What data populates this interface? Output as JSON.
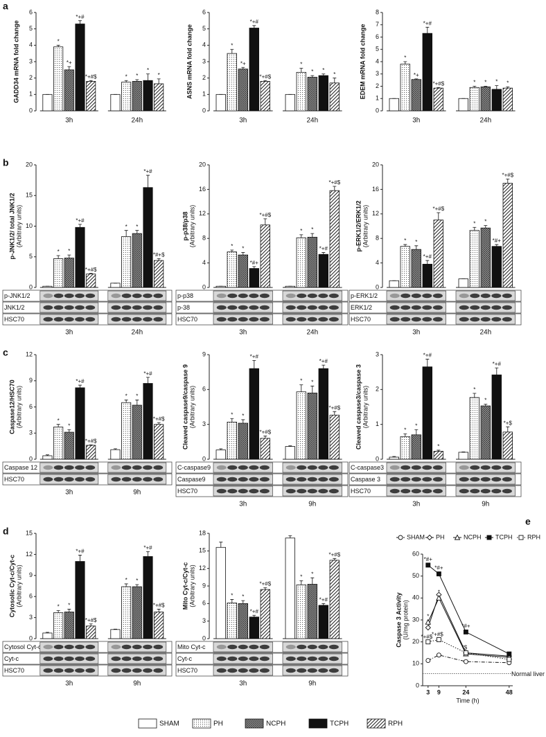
{
  "panels": [
    "a",
    "b",
    "c",
    "d",
    "e"
  ],
  "legend": [
    {
      "name": "SHAM",
      "pattern": "white"
    },
    {
      "name": "PH",
      "pattern": "dots"
    },
    {
      "name": "NCPH",
      "pattern": "crosshatch"
    },
    {
      "name": "TCPH",
      "pattern": "black"
    },
    {
      "name": "RPH",
      "pattern": "hatch"
    }
  ],
  "chart_data": [
    {
      "type": "bar",
      "ylabel": "GADD34 mRNA fold change",
      "categories": [
        "3h",
        "24h"
      ],
      "ylim": [
        0,
        6
      ],
      "yticks": [
        0,
        1,
        2,
        3,
        4,
        5,
        6
      ],
      "blots": [],
      "series": [
        {
          "values": [
            1,
            1
          ],
          "errors": [
            0,
            0
          ],
          "annotations": [
            null,
            null
          ]
        },
        {
          "values": [
            3.9,
            1.75
          ],
          "errors": [
            0.1,
            0.1
          ],
          "annotations": [
            "*",
            "*"
          ]
        },
        {
          "values": [
            2.5,
            1.8
          ],
          "errors": [
            0.2,
            0.1
          ],
          "annotations": [
            "*+",
            "*"
          ]
        },
        {
          "values": [
            5.3,
            1.85
          ],
          "errors": [
            0.2,
            0.4
          ],
          "annotations": [
            "*+#",
            "*"
          ]
        },
        {
          "values": [
            1.8,
            1.65
          ],
          "errors": [
            0.05,
            0.3
          ],
          "annotations": [
            "*+#$",
            "*"
          ]
        }
      ]
    },
    {
      "type": "bar",
      "ylabel": "ASNS mRNA fold change",
      "categories": [
        "3h",
        "24h"
      ],
      "ylim": [
        0,
        6
      ],
      "yticks": [
        0,
        1,
        2,
        3,
        4,
        5,
        6
      ],
      "blots": [],
      "series": [
        {
          "values": [
            1,
            1
          ],
          "errors": [
            0,
            0
          ],
          "annotations": [
            null,
            null
          ]
        },
        {
          "values": [
            3.5,
            2.35
          ],
          "errors": [
            0.25,
            0.25
          ],
          "annotations": [
            "*",
            "*"
          ]
        },
        {
          "values": [
            2.55,
            2.05
          ],
          "errors": [
            0.1,
            0.1
          ],
          "annotations": [
            "*+",
            "*"
          ]
        },
        {
          "values": [
            5.05,
            2.15
          ],
          "errors": [
            0.15,
            0.1
          ],
          "annotations": [
            "*+#",
            "*"
          ]
        },
        {
          "values": [
            1.8,
            1.7
          ],
          "errors": [
            0.05,
            0.3
          ],
          "annotations": [
            "*+#$",
            "*"
          ]
        }
      ]
    },
    {
      "type": "bar",
      "ylabel": "EDEM mRNA fold change",
      "categories": [
        "3h",
        "24h"
      ],
      "ylim": [
        0,
        8
      ],
      "yticks": [
        0,
        1,
        2,
        3,
        4,
        5,
        6,
        7,
        8
      ],
      "blots": [],
      "series": [
        {
          "values": [
            1,
            1
          ],
          "errors": [
            0,
            0
          ],
          "annotations": [
            null,
            null
          ]
        },
        {
          "values": [
            3.8,
            1.9
          ],
          "errors": [
            0.2,
            0.1
          ],
          "annotations": [
            "*",
            "*"
          ]
        },
        {
          "values": [
            2.55,
            1.95
          ],
          "errors": [
            0.05,
            0.05
          ],
          "annotations": [
            "*+",
            "*"
          ]
        },
        {
          "values": [
            6.3,
            1.75
          ],
          "errors": [
            0.5,
            0.3
          ],
          "annotations": [
            "*+#",
            "*"
          ]
        },
        {
          "values": [
            1.85,
            1.85
          ],
          "errors": [
            0.05,
            0.1
          ],
          "annotations": [
            "*+#$",
            "*"
          ]
        }
      ]
    },
    {
      "type": "bar",
      "ylabel": "p-JNK1/2/ total JNK1/2",
      "yunits": "(Arbitrary units)",
      "categories": [
        "3h",
        "24h"
      ],
      "ylim": [
        0,
        20
      ],
      "yticks": [
        0,
        5,
        10,
        15,
        20
      ],
      "blots": [
        "p-JNK1/2",
        "JNK1/2",
        "HSC70"
      ],
      "series": [
        {
          "values": [
            0.2,
            0.7
          ],
          "errors": [
            0,
            0
          ],
          "annotations": [
            null,
            null
          ]
        },
        {
          "values": [
            4.7,
            8.3
          ],
          "errors": [
            0.5,
            1
          ],
          "annotations": [
            "*",
            "*"
          ]
        },
        {
          "values": [
            4.8,
            8.8
          ],
          "errors": [
            0.5,
            0.5
          ],
          "annotations": [
            "*",
            "*"
          ]
        },
        {
          "values": [
            9.8,
            16.3
          ],
          "errors": [
            0.5,
            2
          ],
          "annotations": [
            "*+#",
            "*+#"
          ]
        },
        {
          "values": [
            2.2,
            4.4
          ],
          "errors": [
            0.1,
            0.3
          ],
          "annotations": [
            "*+#$",
            "*#+$"
          ]
        }
      ]
    },
    {
      "type": "bar",
      "ylabel": "p-p38/p38",
      "yunits": "(Arbitrary units)",
      "categories": [
        "3h",
        "24h"
      ],
      "ylim": [
        0,
        20
      ],
      "yticks": [
        0,
        4,
        8,
        12,
        16,
        20
      ],
      "blots": [
        "p-p38",
        "p-38",
        "HSC70"
      ],
      "series": [
        {
          "values": [
            0.2,
            0.2
          ],
          "errors": [
            0,
            0
          ],
          "annotations": [
            null,
            null
          ]
        },
        {
          "values": [
            5.8,
            8.1
          ],
          "errors": [
            0.3,
            0.5
          ],
          "annotations": [
            "*",
            "*"
          ]
        },
        {
          "values": [
            5.3,
            8.2
          ],
          "errors": [
            0.4,
            0.6
          ],
          "annotations": [
            "*",
            "*"
          ]
        },
        {
          "values": [
            3.1,
            5.4
          ],
          "errors": [
            0.3,
            0.3
          ],
          "annotations": [
            "*#+",
            "*+#"
          ]
        },
        {
          "values": [
            10.2,
            15.8
          ],
          "errors": [
            1,
            0.7
          ],
          "annotations": [
            "*+#$",
            "*+#$"
          ]
        }
      ]
    },
    {
      "type": "bar",
      "ylabel": "p-ERK1/2/ERK1/2",
      "yunits": "(Arbitrary units)",
      "categories": [
        "3h",
        "24h"
      ],
      "ylim": [
        0,
        20
      ],
      "yticks": [
        0,
        4,
        8,
        12,
        16,
        20
      ],
      "blots": [
        "p-ERK1/2",
        "ERK1/2",
        "HSC70"
      ],
      "series": [
        {
          "values": [
            1.1,
            1.4
          ],
          "errors": [
            0,
            0
          ],
          "annotations": [
            null,
            null
          ]
        },
        {
          "values": [
            6.7,
            9.3
          ],
          "errors": [
            0.3,
            0.5
          ],
          "annotations": [
            "*",
            "*"
          ]
        },
        {
          "values": [
            6.2,
            9.7
          ],
          "errors": [
            0.6,
            0.4
          ],
          "annotations": [
            "*",
            "*"
          ]
        },
        {
          "values": [
            3.8,
            6.7
          ],
          "errors": [
            0.6,
            0.3
          ],
          "annotations": [
            "*+#",
            "*#+"
          ]
        },
        {
          "values": [
            11,
            17
          ],
          "errors": [
            1.2,
            0.7
          ],
          "annotations": [
            "*+#$",
            "*+#$"
          ]
        }
      ]
    },
    {
      "type": "bar",
      "ylabel": "Caspase12/HSC70",
      "yunits": "(Arbitrary units)",
      "categories": [
        "3h",
        "9h"
      ],
      "ylim": [
        0,
        12
      ],
      "yticks": [
        0,
        3,
        6,
        9,
        12
      ],
      "blots": [
        "Caspase 12",
        "HSC70"
      ],
      "series": [
        {
          "values": [
            0.4,
            1.1
          ],
          "errors": [
            0.1,
            0.1
          ],
          "annotations": [
            null,
            null
          ]
        },
        {
          "values": [
            3.7,
            6.5
          ],
          "errors": [
            0.3,
            0.3
          ],
          "annotations": [
            "*",
            "*"
          ]
        },
        {
          "values": [
            3.1,
            6.2
          ],
          "errors": [
            0.3,
            0.6
          ],
          "annotations": [
            "*",
            "*"
          ]
        },
        {
          "values": [
            8.2,
            8.7
          ],
          "errors": [
            0.3,
            0.7
          ],
          "annotations": [
            "*+#",
            "*+#"
          ]
        },
        {
          "values": [
            1.6,
            4
          ],
          "errors": [
            0.05,
            0.2
          ],
          "annotations": [
            "*+#$",
            "*+#$"
          ]
        }
      ]
    },
    {
      "type": "bar",
      "ylabel": "Cleaved caspase9/caspase 9",
      "yunits": "(Arbitrary units)",
      "categories": [
        "3h",
        "9h"
      ],
      "ylim": [
        0,
        9
      ],
      "yticks": [
        0,
        3,
        6,
        9
      ],
      "blots": [
        "C-caspase9",
        "Caspase9",
        "HSC70"
      ],
      "series": [
        {
          "values": [
            0.8,
            1.1
          ],
          "errors": [
            0.1,
            0.05
          ],
          "annotations": [
            null,
            null
          ]
        },
        {
          "values": [
            3.2,
            5.8
          ],
          "errors": [
            0.3,
            0.6
          ],
          "annotations": [
            "*",
            "*"
          ]
        },
        {
          "values": [
            3.1,
            5.7
          ],
          "errors": [
            0.3,
            0.6
          ],
          "annotations": [
            "*",
            "*"
          ]
        },
        {
          "values": [
            7.8,
            7.8
          ],
          "errors": [
            0.7,
            0.3
          ],
          "annotations": [
            "*+#",
            "*+#"
          ]
        },
        {
          "values": [
            1.8,
            3.8
          ],
          "errors": [
            0.2,
            0.3
          ],
          "annotations": [
            "*+#$",
            "*+#$"
          ]
        }
      ]
    },
    {
      "type": "bar",
      "ylabel": "Cleaved caspase3/caspase 3",
      "yunits": "(Arbitrary units)",
      "categories": [
        "3h",
        "9h"
      ],
      "ylim": [
        0,
        3
      ],
      "yticks": [
        0,
        1,
        2,
        3
      ],
      "blots": [
        "C-caspase3",
        "Caspase 3",
        "HSC70"
      ],
      "series": [
        {
          "values": [
            0.06,
            0.2
          ],
          "errors": [
            0.02,
            0.01
          ],
          "annotations": [
            null,
            null
          ]
        },
        {
          "values": [
            0.65,
            1.77
          ],
          "errors": [
            0.08,
            0.12
          ],
          "annotations": [
            "*",
            "*"
          ]
        },
        {
          "values": [
            0.7,
            1.53
          ],
          "errors": [
            0.15,
            0.05
          ],
          "annotations": [
            "*",
            "*"
          ]
        },
        {
          "values": [
            2.65,
            2.42
          ],
          "errors": [
            0.22,
            0.2
          ],
          "annotations": [
            "*+#",
            "*+#"
          ]
        },
        {
          "values": [
            0.23,
            0.78
          ],
          "errors": [
            0.03,
            0.15
          ],
          "annotations": [
            "*",
            "*+$"
          ]
        }
      ]
    },
    {
      "type": "bar",
      "ylabel": "Cytosolic Cyt-c/Cyt-c",
      "yunits": "(Arbitrary units)",
      "categories": [
        "3h",
        "9h"
      ],
      "ylim": [
        0,
        15
      ],
      "yticks": [
        0,
        3,
        6,
        9,
        12,
        15
      ],
      "blots": [
        "Cytosol Cyt-c",
        "Cyt-c",
        "HSC70"
      ],
      "series": [
        {
          "values": [
            0.8,
            1.3
          ],
          "errors": [
            0.1,
            0.05
          ],
          "annotations": [
            null,
            null
          ]
        },
        {
          "values": [
            3.7,
            7.4
          ],
          "errors": [
            0.3,
            0.4
          ],
          "annotations": [
            "*",
            "*"
          ]
        },
        {
          "values": [
            3.8,
            7.4
          ],
          "errors": [
            0.4,
            0.3
          ],
          "annotations": [
            "*",
            "*"
          ]
        },
        {
          "values": [
            11,
            11.7
          ],
          "errors": [
            0.9,
            0.7
          ],
          "annotations": [
            "*+#",
            "*+#"
          ]
        },
        {
          "values": [
            1.8,
            3.8
          ],
          "errors": [
            0.3,
            0.4
          ],
          "annotations": [
            "*+#$",
            "*+#$"
          ]
        }
      ]
    },
    {
      "type": "bar",
      "ylabel": "Mito Cyt-c/Cyt-c",
      "yunits": "(Arbitrary units)",
      "categories": [
        "3h",
        "9h"
      ],
      "ylim": [
        0,
        18
      ],
      "yticks": [
        0,
        3,
        6,
        9,
        12,
        15,
        18
      ],
      "blots": [
        "Mito Cyt-c",
        "Cyt-c",
        "HSC70"
      ],
      "series": [
        {
          "values": [
            15.6,
            17.2
          ],
          "errors": [
            0.9,
            0.4
          ],
          "annotations": [
            null,
            null
          ]
        },
        {
          "values": [
            6.1,
            9.2
          ],
          "errors": [
            0.6,
            0.7
          ],
          "annotations": [
            "*",
            "*"
          ]
        },
        {
          "values": [
            6,
            9.3
          ],
          "errors": [
            0.5,
            1.1
          ],
          "annotations": [
            "*",
            "*"
          ]
        },
        {
          "values": [
            3.7,
            5.7
          ],
          "errors": [
            0.3,
            0.3
          ],
          "annotations": [
            "*+#",
            "*+#"
          ]
        },
        {
          "values": [
            8.4,
            13.4
          ],
          "errors": [
            0.3,
            0.3
          ],
          "annotations": [
            "*+#$",
            "*+#$"
          ]
        }
      ]
    },
    {
      "type": "line",
      "ylabel": "Caspase 3 Activity",
      "yunits": "(U/mg protein)",
      "xlabel": "Time (h)",
      "x": [
        3,
        9,
        24,
        48
      ],
      "xlim": [
        0,
        50
      ],
      "xticks": [
        3,
        9,
        24,
        48
      ],
      "ylim": [
        0,
        60
      ],
      "yticks": [
        0,
        10,
        20,
        30,
        40,
        50,
        60
      ],
      "reference": {
        "value": 5.5,
        "label": "Normal liver"
      },
      "series": [
        {
          "name": "SHAM",
          "marker": "circle",
          "dash": "dashdot",
          "values": [
            11.5,
            14,
            11,
            10.5
          ],
          "annotations": [
            null,
            null,
            null,
            null
          ]
        },
        {
          "name": "PH",
          "marker": "diamond",
          "dash": "solid",
          "values": [
            26.5,
            41.5,
            15,
            13.5
          ],
          "annotations": [
            "*",
            null,
            null,
            null
          ]
        },
        {
          "name": "NCPH",
          "marker": "triangle",
          "dash": "solid",
          "values": [
            29,
            40,
            14.5,
            13
          ],
          "annotations": [
            "*",
            "*",
            null,
            null
          ]
        },
        {
          "name": "TCPH",
          "marker": "square-filled",
          "dash": "solid",
          "values": [
            55,
            51,
            24.5,
            14.5
          ],
          "annotations": [
            "*#+",
            "*#+",
            "*#+",
            null
          ]
        },
        {
          "name": "RPH",
          "marker": "square",
          "dash": "dotted",
          "values": [
            20,
            21,
            15,
            12
          ],
          "annotations": [
            "*+#$",
            "*+#$",
            "*$",
            null
          ]
        }
      ]
    }
  ]
}
